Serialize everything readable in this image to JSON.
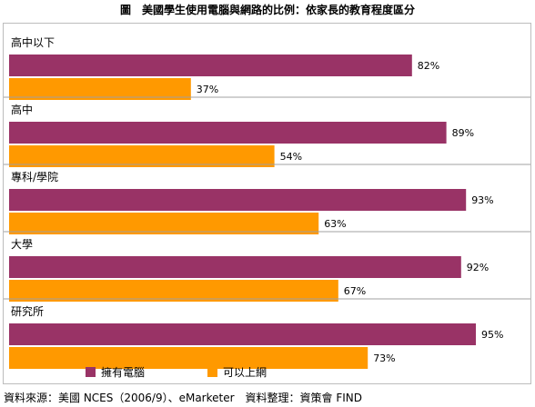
{
  "title": "圖　美國學生使用電腦與網路的比例：依家長的教育程度區分",
  "source": "資料來源：美國 NCES（2006/9）、eMarketer　資料整理：資策會 FIND",
  "colors": {
    "computer": "#993366",
    "internet": "#FF9900",
    "divider": "#a0a0a0"
  },
  "chart_data": {
    "type": "bar",
    "orientation": "horizontal",
    "categories": [
      "高中以下",
      "高中",
      "專科/學院",
      "大學",
      "研究所"
    ],
    "series": [
      {
        "name": "擁有電腦",
        "values": [
          82,
          89,
          93,
          92,
          95
        ]
      },
      {
        "name": "可以上網",
        "values": [
          37,
          54,
          63,
          67,
          73
        ]
      }
    ],
    "value_suffix": "%",
    "xlim": [
      0,
      100
    ],
    "grid": false,
    "legend_position": "bottom"
  }
}
